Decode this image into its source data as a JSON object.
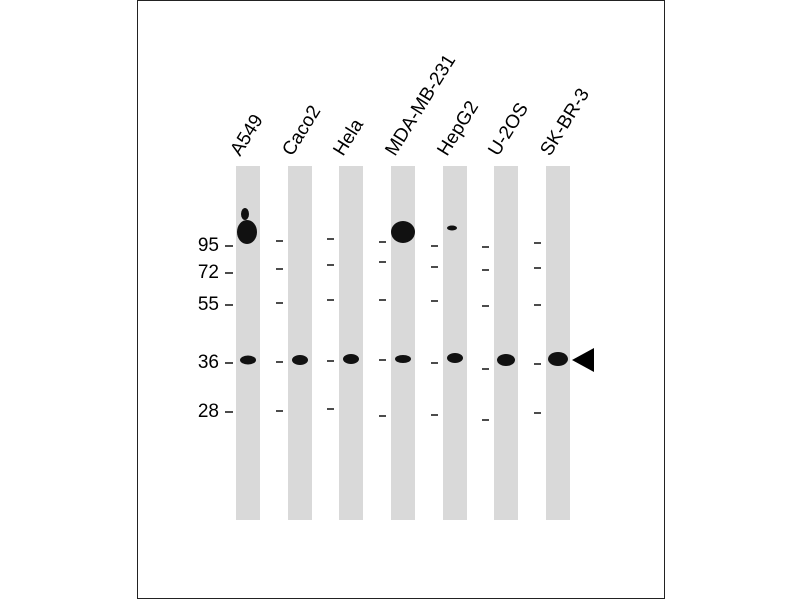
{
  "lanes": [
    {
      "label": "A549"
    },
    {
      "label": "Caco2"
    },
    {
      "label": "Hela"
    },
    {
      "label": "MDA-MB-231"
    },
    {
      "label": "HepG2"
    },
    {
      "label": "U-2OS"
    },
    {
      "label": "SK-BR-3"
    }
  ],
  "markers": [
    {
      "label": "95"
    },
    {
      "label": "72"
    },
    {
      "label": "55"
    },
    {
      "label": "36"
    },
    {
      "label": "28"
    }
  ]
}
